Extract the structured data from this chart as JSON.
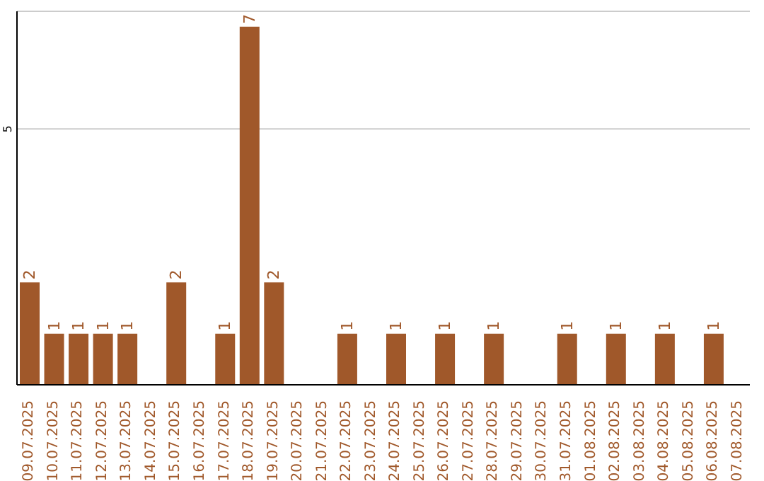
{
  "chart_data": {
    "type": "bar",
    "categories": [
      "09.07.2025",
      "10.07.2025",
      "11.07.2025",
      "12.07.2025",
      "13.07.2025",
      "14.07.2025",
      "15.07.2025",
      "16.07.2025",
      "17.07.2025",
      "18.07.2025",
      "19.07.2025",
      "20.07.2025",
      "21.07.2025",
      "22.07.2025",
      "23.07.2025",
      "24.07.2025",
      "25.07.2025",
      "26.07.2025",
      "27.07.2025",
      "28.07.2025",
      "29.07.2025",
      "30.07.2025",
      "31.07.2025",
      "01.08.2025",
      "02.08.2025",
      "03.08.2025",
      "04.08.2025",
      "05.08.2025",
      "06.08.2025",
      "07.08.2025"
    ],
    "values": [
      2,
      1,
      1,
      1,
      1,
      0,
      2,
      0,
      1,
      7,
      2,
      0,
      0,
      1,
      0,
      1,
      0,
      1,
      0,
      1,
      0,
      0,
      1,
      0,
      1,
      0,
      1,
      0,
      1,
      0
    ],
    "value_labels": [
      "2",
      "1",
      "1",
      "1",
      "1",
      null,
      "2",
      null,
      "1",
      "7",
      "2",
      null,
      null,
      "1",
      null,
      "1",
      null,
      "1",
      null,
      "1",
      null,
      null,
      "1",
      null,
      "1",
      null,
      "1",
      null,
      "1",
      null
    ],
    "color": "#a0582a",
    "ylim": [
      0,
      7.3
    ],
    "yticks": [
      5
    ],
    "grid": "y"
  }
}
